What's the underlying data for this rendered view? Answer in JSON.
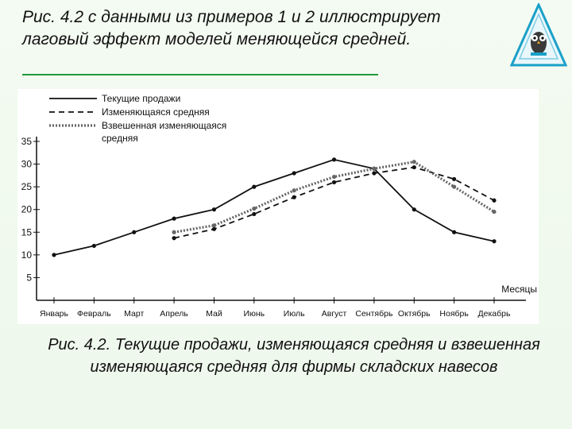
{
  "slide": {
    "title": "Рис. 4.2 с данными из примеров 1 и 2 иллюстрирует лаговый эффект моделей меняющейся средней.",
    "caption": "Рис. 4.2. Текущие продажи, изменяющаяся средняя и взвешенная изменяющаяся средняя для фирмы складских навесов"
  },
  "logo": {
    "icon": "owl-logo-icon",
    "color": "#1aa0c8"
  },
  "chart_data": {
    "type": "line",
    "title": "",
    "xlabel": "Месяцы",
    "ylabel": "",
    "ylim": [
      0,
      35
    ],
    "yticks": [
      5,
      10,
      15,
      20,
      25,
      30,
      35
    ],
    "categories": [
      "Январь",
      "Февраль",
      "Март",
      "Апрель",
      "Май",
      "Июнь",
      "Июль",
      "Август",
      "Сентябрь",
      "Октябрь",
      "Ноябрь",
      "Декабрь"
    ],
    "grid": false,
    "legend_position": "top-left",
    "series": [
      {
        "name": "Текущие продажи",
        "style": "solid",
        "color": "#111111",
        "values": [
          10,
          12,
          15,
          18,
          20,
          25,
          28,
          31,
          29,
          20,
          15,
          13
        ]
      },
      {
        "name": "Изменяющаяся средняя",
        "style": "dashed",
        "color": "#111111",
        "values": [
          null,
          null,
          null,
          13.7,
          15.7,
          19,
          22.7,
          26,
          28,
          29.3,
          26.7,
          22
        ]
      },
      {
        "name": "Взвешенная изменяющаяся средняя",
        "style": "dotted-thick",
        "color": "#666666",
        "values": [
          null,
          null,
          null,
          15,
          16.5,
          20.2,
          24.2,
          27.2,
          29,
          30.5,
          25,
          19.5
        ]
      }
    ]
  }
}
